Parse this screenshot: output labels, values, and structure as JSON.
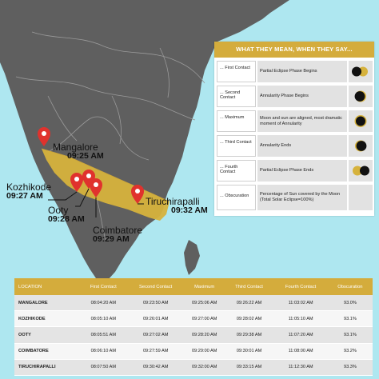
{
  "map": {
    "colors": {
      "sea": "#aee7f0",
      "land": "#5f5f5f",
      "path": "#d6b23c",
      "pin": "#e0322d",
      "borders": "#9a9a9a"
    },
    "pins": [
      {
        "city": "Mangalore",
        "time": "09:25 AM"
      },
      {
        "city": "Kozhikode",
        "time": "09:27 AM"
      },
      {
        "city": "Ooty",
        "time": "09:28 AM"
      },
      {
        "city": "Coimbatore",
        "time": "09:29 AM"
      },
      {
        "city": "Tiruchirapalli",
        "time": "09:32 AM"
      }
    ]
  },
  "legend": {
    "title": "WHAT THEY MEAN, WHEN THEY SAY...",
    "rows": [
      {
        "term": "... First Contact",
        "definition": "Partial Eclipse Phase Begins",
        "icon": "first-contact-icon"
      },
      {
        "term": "... Second Contact",
        "definition": "Annularity Phase Begins",
        "icon": "second-contact-icon"
      },
      {
        "term": "... Maximum",
        "definition": "Moon and sun are aligned, most dramatic moment of Annularity",
        "icon": "maximum-icon"
      },
      {
        "term": "... Third Contact",
        "definition": "Annularity Ends",
        "icon": "third-contact-icon"
      },
      {
        "term": "... Fourth Contact",
        "definition": "Partial Eclipse Phase Ends",
        "icon": "fourth-contact-icon"
      },
      {
        "term": "... Obscuration",
        "definition": "Percentage of Sun covered by the Moon (Total Solar Eclipse=100%)",
        "icon": ""
      }
    ]
  },
  "table": {
    "headers": [
      "LOCATION",
      "First Contact",
      "Second Contact",
      "Maximum",
      "Third Contact",
      "Fourth Contact",
      "Obscuration"
    ],
    "rows": [
      [
        "MANGALORE",
        "08:04:20 AM",
        "09:23:50 AM",
        "09:25:06 AM",
        "09:26:22 AM",
        "11:03:02 AM",
        "93.0%"
      ],
      [
        "KOZHIKODE",
        "08:05:10 AM",
        "09:26:01 AM",
        "09:27:00 AM",
        "09:28:02 AM",
        "11:05:10 AM",
        "93.1%"
      ],
      [
        "OOTY",
        "08:05:51 AM",
        "09:27:02 AM",
        "09:28:20 AM",
        "09:29:38 AM",
        "11:07:20 AM",
        "93.1%"
      ],
      [
        "COIMBATORE",
        "08:06:10 AM",
        "09:27:59 AM",
        "09:29:00 AM",
        "09:30:01 AM",
        "11:08:00 AM",
        "93.2%"
      ],
      [
        "TIRUCHIRAPALLI",
        "08:07:50 AM",
        "09:30:42 AM",
        "09:32:00 AM",
        "09:33:15 AM",
        "11:12:30 AM",
        "93.3%"
      ]
    ]
  }
}
